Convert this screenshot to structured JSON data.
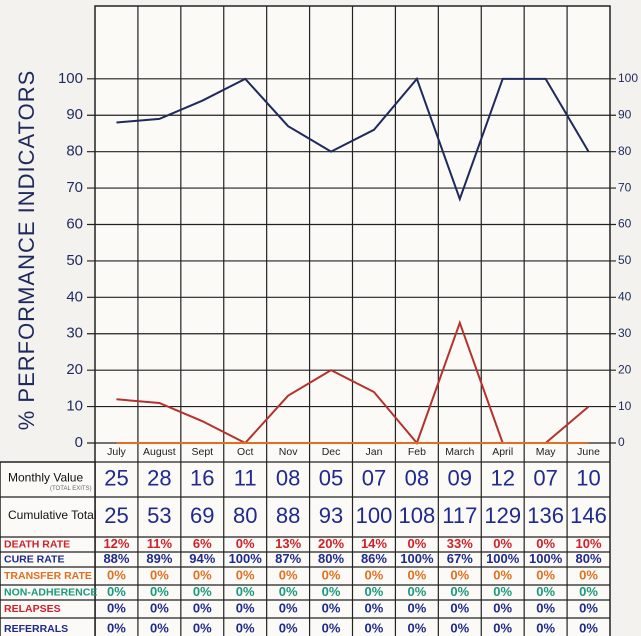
{
  "chart_data": {
    "type": "line",
    "y_label": "% PERFORMANCE INDICATORS",
    "categories": [
      "July",
      "August",
      "Sept",
      "Oct",
      "Nov",
      "Dec",
      "Jan",
      "Feb",
      "March",
      "April",
      "May",
      "June"
    ],
    "series": [
      {
        "color": "#1f2a5c",
        "values": [
          88,
          89,
          94,
          100,
          87,
          80,
          86,
          100,
          67,
          100,
          100,
          80
        ]
      },
      {
        "color": "#b5322c",
        "values": [
          12,
          11,
          6,
          0,
          13,
          20,
          14,
          0,
          33,
          0,
          0,
          10
        ]
      },
      {
        "color": "#e0701f",
        "values": [
          0,
          0,
          0,
          0,
          0,
          0,
          0,
          0,
          0,
          0,
          0,
          0
        ]
      }
    ],
    "ylim": [
      0,
      120
    ],
    "yticks": [
      0,
      10,
      20,
      30,
      40,
      50,
      60,
      70,
      80,
      90,
      100
    ],
    "grid": true
  },
  "table": {
    "rows": [
      {
        "label": "Monthly Value",
        "note": "(TOTAL EXITS)",
        "label_color": "#111",
        "color": "#1f2a8c",
        "cells": [
          "25",
          "28",
          "16",
          "11",
          "08",
          "05",
          "07",
          "08",
          "09",
          "12",
          "07",
          "10"
        ]
      },
      {
        "label": "Cumulative Total",
        "label_color": "#111",
        "color": "#1f2a8c",
        "cells": [
          "25",
          "53",
          "69",
          "80",
          "88",
          "93",
          "100",
          "108",
          "117",
          "129",
          "136",
          "146"
        ]
      },
      {
        "label": "DEATH RATE",
        "label_color": "#d0202a",
        "color": "#d0202a",
        "cells": [
          "12%",
          "11%",
          "6%",
          "0%",
          "13%",
          "20%",
          "14%",
          "0%",
          "33%",
          "0%",
          "0%",
          "10%"
        ]
      },
      {
        "label": "CURE RATE",
        "label_color": "#1f2a8c",
        "color": "#1f2a8c",
        "cells": [
          "88%",
          "89%",
          "94%",
          "100%",
          "87%",
          "80%",
          "86%",
          "100%",
          "67%",
          "100%",
          "100%",
          "80%"
        ]
      },
      {
        "label": "TRANSFER RATE",
        "label_color": "#e0701f",
        "color": "#e0701f",
        "cells": [
          "0%",
          "0%",
          "0%",
          "0%",
          "0%",
          "0%",
          "0%",
          "0%",
          "0%",
          "0%",
          "0%",
          "0%"
        ]
      },
      {
        "label": "NON-ADHERENCE",
        "label_color": "#1a9a7a",
        "color": "#1a9a7a",
        "cells": [
          "0%",
          "0%",
          "0%",
          "0%",
          "0%",
          "0%",
          "0%",
          "0%",
          "0%",
          "0%",
          "0%",
          "0%"
        ]
      },
      {
        "label": "RELAPSES",
        "label_color": "#d0202a",
        "color": "#1f2a8c",
        "cells": [
          "0%",
          "0%",
          "0%",
          "0%",
          "0%",
          "0%",
          "0%",
          "0%",
          "0%",
          "0%",
          "0%",
          "0%"
        ]
      },
      {
        "label": "REFERRALS",
        "label_color": "#1f2a8c",
        "color": "#1f2a8c",
        "cells": [
          "0%",
          "0%",
          "0%",
          "0%",
          "0%",
          "0%",
          "0%",
          "0%",
          "0%",
          "0%",
          "0%",
          "0%"
        ]
      }
    ]
  }
}
